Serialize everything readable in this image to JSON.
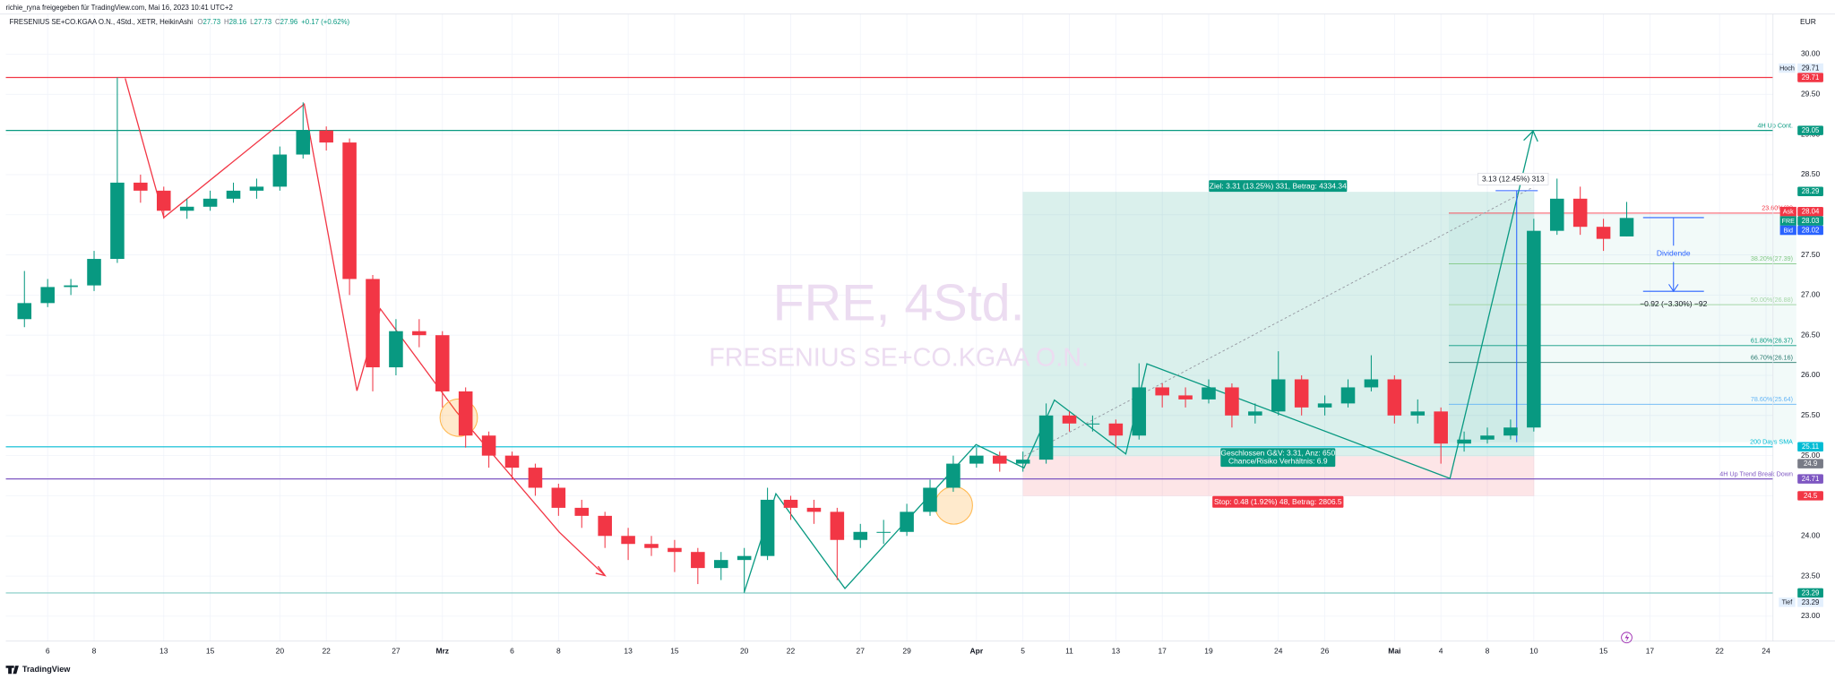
{
  "header": "richie_ryna freigegeben für TradingView.com, Mai 16, 2023 10:41 UTC+2",
  "legend": {
    "symbol": "FRESENIUS SE+CO.KGAA O.N., 4Std., XETR, HeikinAshi",
    "keys": [
      "O",
      "H",
      "L",
      "C"
    ],
    "change": "+0.17 (+0.62%)"
  },
  "currency": "EUR",
  "watermark": {
    "title": "FRE, 4Std.",
    "subtitle": "FRESENIUS SE+CO.KGAA O.N."
  },
  "brand": "TradingView",
  "chart_data": {
    "type": "candlestick",
    "up_color": "#089981",
    "down_color": "#f23645",
    "grid": true,
    "x": [
      -1,
      0,
      1,
      2,
      3,
      4,
      5,
      6,
      7,
      8,
      9,
      10,
      11,
      12,
      13,
      14,
      15,
      16,
      17,
      18,
      19,
      20,
      21,
      22,
      23,
      24,
      25,
      26,
      27,
      28,
      29,
      30,
      31,
      32,
      33,
      34,
      35,
      36,
      37,
      38,
      39,
      40,
      41,
      42,
      43,
      44,
      45,
      46,
      47,
      48,
      49,
      50,
      51,
      52,
      53,
      54,
      55,
      56,
      57,
      58,
      59,
      60,
      61,
      62,
      63,
      64,
      65,
      66,
      67,
      68
    ],
    "open": [
      26.7,
      26.9,
      27.1,
      27.12,
      27.45,
      28.4,
      28.3,
      28.05,
      28.1,
      28.2,
      28.3,
      28.35,
      28.75,
      29.05,
      28.9,
      27.2,
      26.1,
      26.55,
      26.5,
      25.8,
      25.25,
      25.0,
      24.85,
      24.6,
      24.35,
      24.25,
      24.0,
      23.9,
      23.85,
      23.8,
      23.6,
      23.7,
      23.75,
      24.45,
      24.35,
      24.3,
      23.95,
      24.05,
      24.05,
      24.3,
      24.6,
      24.9,
      25.0,
      24.9,
      24.95,
      25.5,
      25.4,
      25.4,
      25.25,
      25.85,
      25.75,
      25.7,
      25.85,
      25.5,
      25.55,
      25.95,
      25.6,
      25.65,
      25.85,
      25.95,
      25.5,
      25.55,
      25.15,
      25.2,
      25.25,
      25.35,
      27.8,
      28.2,
      27.85,
      27.73
    ],
    "high": [
      27.3,
      27.2,
      27.2,
      27.55,
      29.71,
      28.5,
      28.35,
      28.2,
      28.3,
      28.4,
      28.45,
      28.85,
      29.4,
      29.1,
      28.95,
      27.25,
      26.7,
      26.7,
      26.55,
      25.85,
      25.3,
      25.05,
      24.9,
      24.65,
      24.45,
      24.3,
      24.1,
      24.0,
      23.95,
      23.85,
      23.8,
      23.85,
      24.6,
      24.5,
      24.45,
      24.35,
      24.15,
      24.2,
      24.4,
      24.7,
      25.0,
      25.1,
      25.05,
      25.05,
      25.65,
      25.55,
      25.5,
      25.45,
      26.15,
      25.9,
      25.85,
      25.95,
      25.9,
      25.65,
      26.3,
      26.0,
      25.75,
      25.95,
      26.25,
      26.0,
      25.7,
      25.6,
      25.3,
      25.35,
      25.45,
      27.95,
      28.45,
      28.35,
      27.95,
      28.16
    ],
    "low": [
      26.6,
      26.85,
      27.0,
      27.05,
      27.4,
      28.15,
      27.95,
      27.95,
      28.05,
      28.15,
      28.2,
      28.3,
      28.7,
      28.8,
      27.0,
      25.8,
      26.0,
      26.35,
      25.6,
      25.1,
      24.85,
      24.7,
      24.5,
      24.25,
      24.1,
      23.85,
      23.7,
      23.75,
      23.55,
      23.4,
      23.45,
      23.29,
      23.7,
      24.2,
      24.15,
      23.45,
      23.85,
      23.9,
      24.0,
      24.25,
      24.55,
      24.85,
      24.8,
      24.8,
      24.9,
      25.3,
      25.3,
      25.1,
      25.2,
      25.6,
      25.6,
      25.65,
      25.35,
      25.4,
      25.5,
      25.5,
      25.5,
      25.6,
      25.8,
      25.4,
      25.4,
      24.9,
      25.05,
      25.15,
      25.2,
      25.3,
      27.75,
      27.75,
      27.55,
      27.73
    ],
    "close": [
      26.9,
      27.1,
      27.12,
      27.45,
      28.4,
      28.3,
      28.05,
      28.1,
      28.2,
      28.3,
      28.35,
      28.75,
      29.05,
      28.9,
      27.2,
      26.1,
      26.55,
      26.5,
      25.8,
      25.25,
      25.0,
      24.85,
      24.6,
      24.35,
      24.25,
      24.0,
      23.9,
      23.85,
      23.8,
      23.6,
      23.7,
      23.75,
      24.45,
      24.35,
      24.3,
      23.95,
      24.05,
      24.05,
      24.3,
      24.6,
      24.9,
      25.0,
      24.9,
      24.95,
      25.5,
      25.4,
      25.4,
      25.25,
      25.85,
      25.75,
      25.7,
      25.85,
      25.5,
      25.55,
      25.95,
      25.6,
      25.65,
      25.85,
      25.95,
      25.5,
      25.55,
      25.15,
      25.2,
      25.25,
      25.35,
      27.8,
      28.2,
      27.85,
      27.7,
      27.96
    ],
    "xlim": [
      -1.8,
      74.3
    ],
    "ylim": [
      22.69,
      30.5
    ],
    "xticks": [
      {
        "value": 0,
        "label": "6"
      },
      {
        "value": 2,
        "label": "8"
      },
      {
        "value": 5,
        "label": "13"
      },
      {
        "value": 7,
        "label": "15"
      },
      {
        "value": 10,
        "label": "20"
      },
      {
        "value": 12,
        "label": "22"
      },
      {
        "value": 15,
        "label": "27"
      },
      {
        "value": 17,
        "label": "Mrz"
      },
      {
        "value": 20,
        "label": "6"
      },
      {
        "value": 22,
        "label": "8"
      },
      {
        "value": 25,
        "label": "13"
      },
      {
        "value": 27,
        "label": "15"
      },
      {
        "value": 30,
        "label": "20"
      },
      {
        "value": 32,
        "label": "22"
      },
      {
        "value": 35,
        "label": "27"
      },
      {
        "value": 37,
        "label": "29"
      },
      {
        "value": 40,
        "label": "Apr"
      },
      {
        "value": 42,
        "label": "5"
      },
      {
        "value": 44,
        "label": "11"
      },
      {
        "value": 46,
        "label": "13"
      },
      {
        "value": 48,
        "label": "17"
      },
      {
        "value": 50,
        "label": "19"
      },
      {
        "value": 53,
        "label": "24"
      },
      {
        "value": 55,
        "label": "26"
      },
      {
        "value": 58,
        "label": "Mai"
      },
      {
        "value": 60,
        "label": "4"
      },
      {
        "value": 62,
        "label": "8"
      },
      {
        "value": 64,
        "label": "10"
      },
      {
        "value": 67,
        "label": "15"
      },
      {
        "value": 69,
        "label": "17"
      },
      {
        "value": 72,
        "label": "22"
      },
      {
        "value": 74,
        "label": "24"
      }
    ],
    "yticks": [
      {
        "value": 23,
        "label": "23.00"
      },
      {
        "value": 23.5,
        "label": "23.50"
      },
      {
        "value": 24,
        "label": "24.00"
      },
      {
        "value": 24.5,
        "label": "24.50"
      },
      {
        "value": 25,
        "label": "25.00"
      },
      {
        "value": 25.5,
        "label": "25.50"
      },
      {
        "value": 26,
        "label": "26.00"
      },
      {
        "value": 26.5,
        "label": "26.50"
      },
      {
        "value": 27,
        "label": "27.00"
      },
      {
        "value": 27.5,
        "label": "27.50"
      },
      {
        "value": 28,
        "label": "28.00"
      },
      {
        "value": 28.5,
        "label": "28.50"
      },
      {
        "value": 29,
        "label": "29.00"
      },
      {
        "value": 29.5,
        "label": "29.50"
      },
      {
        "value": 30,
        "label": "30.00"
      }
    ],
    "hlines": [
      {
        "value": 29.71,
        "color": "#f23645"
      },
      {
        "value": 29.05,
        "color": "#089981",
        "label": "4H Up Cont."
      },
      {
        "value": 25.11,
        "color": "#00bcd4",
        "label": "200 Days SMA"
      },
      {
        "value": 24.71,
        "color": "#7e57c2",
        "label": "4H Up Trend Break Down"
      },
      {
        "value": 23.29,
        "color": "#80cbc4"
      }
    ],
    "fib": [
      {
        "value": 28.02,
        "label": "23.60%(28",
        "color": "#f23645"
      },
      {
        "value": 27.39,
        "label": "38.20%(27.39)",
        "color": "#81c784"
      },
      {
        "value": 26.88,
        "label": "50.00%(26.88)",
        "color": "#a5d6a7"
      },
      {
        "value": 26.37,
        "label": "61.80%(26.37)",
        "color": "#089981"
      },
      {
        "value": 26.16,
        "label": "66.70%(26.16)",
        "color": "#26786d"
      },
      {
        "value": 25.64,
        "label": "78.60%(25.64)",
        "color": "#64b5f6"
      }
    ],
    "price_tags": [
      {
        "value": 29.71,
        "color": "#f23645",
        "tag": "Hoch"
      },
      {
        "value": 29.05,
        "color": "#089981"
      },
      {
        "value": 28.29,
        "color": "#089981"
      },
      {
        "value": 28.04,
        "color": "#f23645",
        "tag": "Ask"
      },
      {
        "value": 28.03,
        "color": "#089981",
        "tag": "FRE"
      },
      {
        "value": 28.02,
        "color": "#2962ff",
        "tag": "Bid"
      },
      {
        "value": 25.11,
        "color": "#00bcd4"
      },
      {
        "value": 24.9,
        "color": "#787b86"
      },
      {
        "value": 24.71,
        "color": "#7e57c2"
      },
      {
        "value": 24.5,
        "color": "#f23645"
      },
      {
        "value": 23.29,
        "color": "#089981",
        "tag": "Tief"
      }
    ],
    "annotations": {
      "target": "Ziel: 3.31 (13.25%) 331, Betrag: 4334.34",
      "move": "3.13 (12.45%) 313",
      "dividend": "Dividende",
      "dividend_change": "−0.92 (−3.30%) −92",
      "closed": "Geschlossen G&V: 3.31, Anz: 650",
      "ratio": "Chance/Risiko Verhältnis: 6.9",
      "stop": "Stop: 0.48 (1.92%) 48, Betrag: 2806.5"
    }
  }
}
